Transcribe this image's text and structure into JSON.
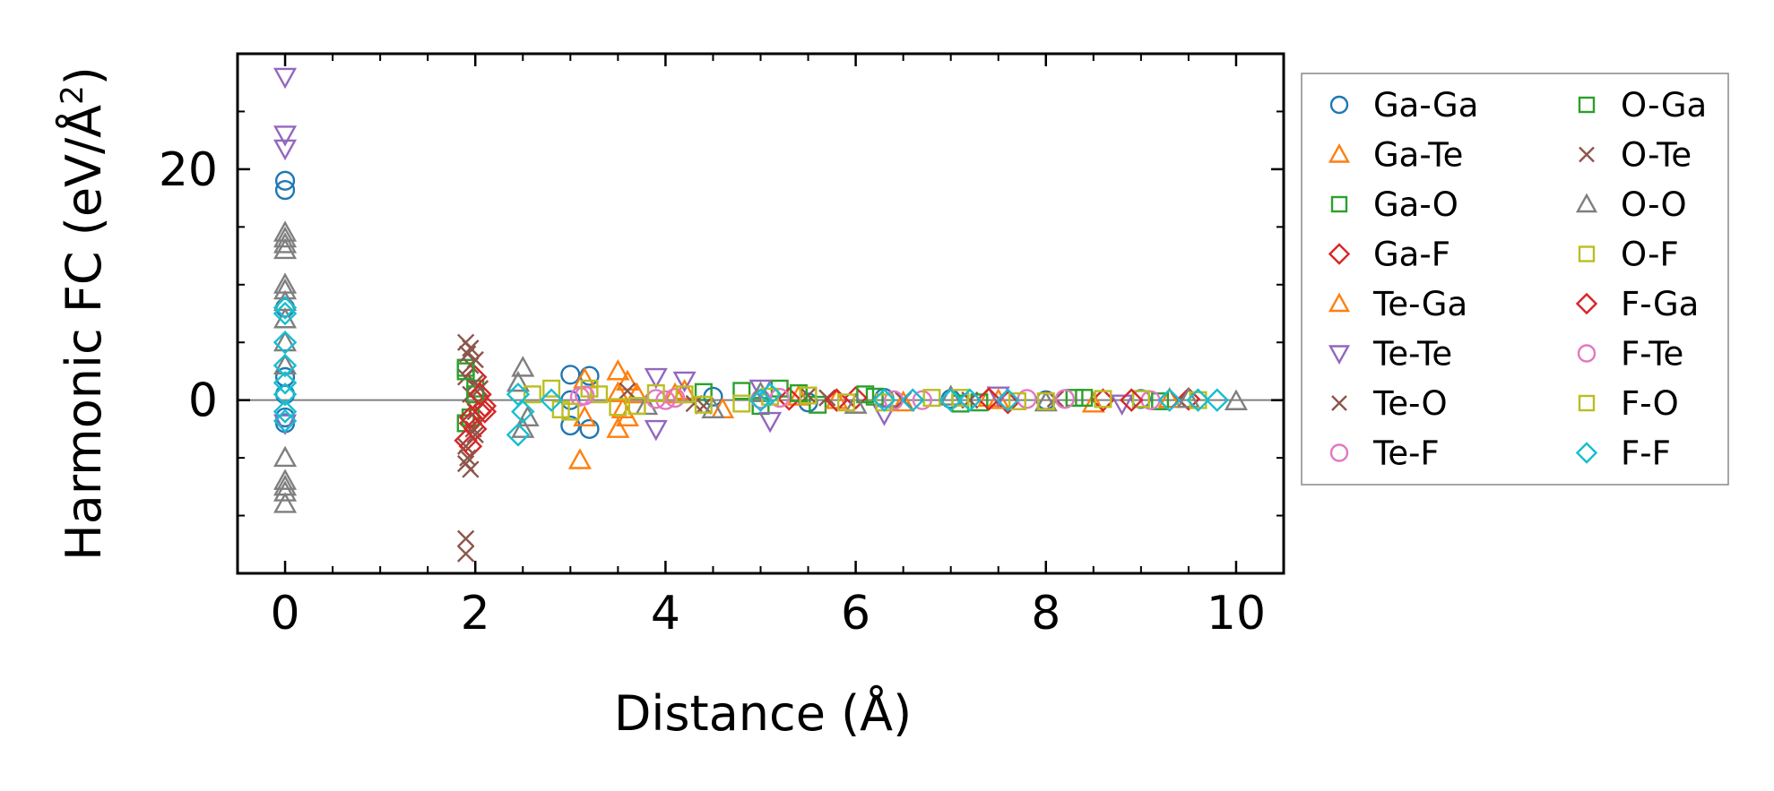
{
  "chart_data": {
    "type": "scatter",
    "title": "",
    "xlabel": "Distance (Å)",
    "ylabel_main": "Harmonic FC (eV/Å",
    "ylabel_sup": "2",
    "ylabel_close": ")",
    "xlim": [
      -0.5,
      10.5
    ],
    "ylim": [
      -15,
      30
    ],
    "x_ticks": [
      0,
      2,
      4,
      6,
      8,
      10
    ],
    "x_tick_labels": [
      "0",
      "2",
      "4",
      "6",
      "8",
      "10"
    ],
    "x_minor_ticks": [
      -0.5,
      0.5,
      1,
      1.5,
      2.5,
      3,
      3.5,
      4.5,
      5,
      5.5,
      6.5,
      7,
      7.5,
      8.5,
      9,
      9.5
    ],
    "y_ticks": [
      0,
      20
    ],
    "y_tick_labels": [
      "0",
      "20"
    ],
    "y_minor_ticks": [
      -10,
      -5,
      5,
      10,
      15,
      25
    ],
    "zero_line": 0,
    "legend_position": "outside-right",
    "series": [
      {
        "name": "Ga-Ga",
        "color": "#1f77b4",
        "marker": "circle",
        "points": [
          [
            0,
            19
          ],
          [
            0,
            18.2
          ],
          [
            0,
            8
          ],
          [
            0,
            2
          ],
          [
            0,
            0.5
          ],
          [
            0,
            -1.5
          ],
          [
            0,
            -2
          ],
          [
            3.0,
            2.2
          ],
          [
            3.0,
            -2.2
          ],
          [
            3.2,
            2.1
          ],
          [
            3.2,
            -2.5
          ],
          [
            3.0,
            0
          ],
          [
            4.5,
            0.3
          ],
          [
            5.5,
            -0.2
          ],
          [
            6.3,
            0.2
          ],
          [
            7,
            0.1
          ],
          [
            8,
            0
          ],
          [
            9,
            0.1
          ]
        ]
      },
      {
        "name": "Ga-Te",
        "color": "#ff7f0e",
        "marker": "triangle-up",
        "points": [
          [
            3.15,
            1.8
          ],
          [
            3.15,
            -1.5
          ],
          [
            3.1,
            -5.2
          ],
          [
            3.5,
            2.5
          ],
          [
            3.5,
            -2.5
          ],
          [
            3.6,
            -1.5
          ],
          [
            3.6,
            1.6
          ],
          [
            3.7,
            0.5
          ],
          [
            4.2,
            0.8
          ],
          [
            4.6,
            -0.8
          ],
          [
            5.4,
            0.3
          ],
          [
            6.5,
            -0.2
          ],
          [
            7.4,
            0.2
          ],
          [
            8.5,
            -0.3
          ],
          [
            9.3,
            0.1
          ]
        ]
      },
      {
        "name": "Ga-O",
        "color": "#2ca02c",
        "marker": "square",
        "points": [
          [
            1.9,
            2.8
          ],
          [
            1.9,
            -2
          ],
          [
            2.0,
            1
          ],
          [
            4.4,
            0.7
          ],
          [
            5.0,
            -0.5
          ],
          [
            5.2,
            1
          ],
          [
            5.6,
            -0.4
          ],
          [
            6.2,
            0.3
          ],
          [
            7.3,
            -0.2
          ],
          [
            8.3,
            0.2
          ],
          [
            9.2,
            -0.1
          ]
        ]
      },
      {
        "name": "Ga-F",
        "color": "#d62728",
        "marker": "diamond",
        "points": [
          [
            1.95,
            -2
          ],
          [
            1.95,
            -4
          ],
          [
            2.0,
            0
          ],
          [
            2.0,
            2
          ],
          [
            2.05,
            -1
          ],
          [
            2.1,
            -0.5
          ],
          [
            1.9,
            -3.5
          ],
          [
            5.3,
            0.1
          ],
          [
            6.0,
            0.2
          ],
          [
            7.6,
            -0.2
          ],
          [
            8.6,
            0
          ],
          [
            9.5,
            0.1
          ]
        ]
      },
      {
        "name": "Te-Ga",
        "color": "#ff7f0e",
        "marker": "triangle-up",
        "points": [
          [
            3.5,
            0.6
          ],
          [
            3.55,
            -0.8
          ],
          [
            4.1,
            0.5
          ],
          [
            5.8,
            0
          ],
          [
            7.5,
            0
          ]
        ]
      },
      {
        "name": "Te-Te",
        "color": "#9467bd",
        "marker": "triangle-down",
        "points": [
          [
            0,
            28
          ],
          [
            0,
            23
          ],
          [
            0,
            21.8
          ],
          [
            0,
            -2
          ],
          [
            3.9,
            2
          ],
          [
            3.9,
            -2.5
          ],
          [
            4.2,
            1.7
          ],
          [
            5.0,
            1
          ],
          [
            5.1,
            -1.8
          ],
          [
            6.3,
            -1.2
          ],
          [
            7.5,
            0.4
          ],
          [
            8.8,
            -0.3
          ]
        ]
      },
      {
        "name": "Te-O",
        "color": "#8c564b",
        "marker": "x",
        "points": [
          [
            1.9,
            -12
          ],
          [
            1.9,
            -13.3
          ],
          [
            1.9,
            5
          ],
          [
            1.92,
            4
          ],
          [
            1.95,
            3
          ],
          [
            1.9,
            2
          ],
          [
            1.92,
            -5
          ],
          [
            1.95,
            -6
          ],
          [
            1.9,
            -4
          ],
          [
            2.0,
            -3
          ],
          [
            2.0,
            1.5
          ],
          [
            2.0,
            -1
          ],
          [
            1.95,
            0.5
          ],
          [
            3.6,
            0.8
          ],
          [
            4.4,
            -0.5
          ],
          [
            5.5,
            0.4
          ],
          [
            6.5,
            0
          ],
          [
            8.1,
            0.1
          ],
          [
            9.4,
            0
          ]
        ]
      },
      {
        "name": "Te-F",
        "color": "#e377c2",
        "marker": "circle",
        "points": [
          [
            3.1,
            0.3
          ],
          [
            4.0,
            0
          ],
          [
            4.1,
            0.2
          ],
          [
            5.0,
            0.1
          ],
          [
            6.4,
            0
          ],
          [
            7.8,
            0.1
          ],
          [
            9.1,
            0
          ]
        ]
      },
      {
        "name": "O-Ga",
        "color": "#2ca02c",
        "marker": "square",
        "points": [
          [
            1.9,
            2.5
          ],
          [
            1.95,
            -1.5
          ],
          [
            2.0,
            0.5
          ],
          [
            4.8,
            0.8
          ],
          [
            5.4,
            0.6
          ],
          [
            6.1,
            0.5
          ],
          [
            7.1,
            -0.3
          ],
          [
            8.4,
            0.2
          ]
        ]
      },
      {
        "name": "O-Te",
        "color": "#8c564b",
        "marker": "x",
        "points": [
          [
            1.95,
            4.5
          ],
          [
            1.98,
            -2.5
          ],
          [
            2.0,
            3.5
          ],
          [
            1.9,
            -5.5
          ],
          [
            2.05,
            1
          ],
          [
            4.3,
            -0.3
          ],
          [
            5.7,
            0.2
          ],
          [
            7.2,
            0
          ]
        ]
      },
      {
        "name": "O-O",
        "color": "#7f7f7f",
        "marker": "triangle-up",
        "points": [
          [
            0,
            14.5
          ],
          [
            0,
            14
          ],
          [
            0,
            13.5
          ],
          [
            0,
            13
          ],
          [
            0,
            10
          ],
          [
            0,
            9.5
          ],
          [
            0,
            8.5
          ],
          [
            0,
            7
          ],
          [
            0,
            5
          ],
          [
            0,
            3
          ],
          [
            0,
            -5
          ],
          [
            0,
            -7
          ],
          [
            0,
            -8
          ],
          [
            0,
            -9
          ],
          [
            0,
            -7.5
          ],
          [
            2.5,
            2.8
          ],
          [
            2.5,
            -2.5
          ],
          [
            2.45,
            1.5
          ],
          [
            2.55,
            -1.5
          ],
          [
            3.8,
            -0.5
          ],
          [
            4.5,
            -0.8
          ],
          [
            5.0,
            0.6
          ],
          [
            6.0,
            -0.4
          ],
          [
            7.0,
            0.3
          ],
          [
            8.0,
            -0.2
          ],
          [
            9.5,
            0.1
          ],
          [
            10.0,
            -0.1
          ]
        ]
      },
      {
        "name": "O-F",
        "color": "#bcbd22",
        "marker": "square",
        "points": [
          [
            2.8,
            1
          ],
          [
            3.0,
            -1
          ],
          [
            3.3,
            0.5
          ],
          [
            3.7,
            -0.5
          ],
          [
            4.2,
            0.5
          ],
          [
            4.8,
            -0.3
          ],
          [
            5.5,
            0.4
          ],
          [
            6.3,
            -0.2
          ],
          [
            7.1,
            0.2
          ],
          [
            8.0,
            -0.1
          ],
          [
            9.0,
            0.1
          ]
        ]
      },
      {
        "name": "F-Ga",
        "color": "#d62728",
        "marker": "diamond",
        "points": [
          [
            1.95,
            -1.5
          ],
          [
            2.0,
            -2.5
          ],
          [
            2.05,
            0.5
          ],
          [
            2.1,
            -1
          ],
          [
            5.8,
            0
          ],
          [
            7.4,
            0.1
          ],
          [
            8.9,
            0
          ]
        ]
      },
      {
        "name": "F-Te",
        "color": "#e377c2",
        "marker": "circle",
        "points": [
          [
            3.15,
            0.4
          ],
          [
            3.9,
            0.1
          ],
          [
            5.2,
            0.2
          ],
          [
            6.7,
            0
          ],
          [
            8.2,
            0.1
          ]
        ]
      },
      {
        "name": "F-O",
        "color": "#bcbd22",
        "marker": "square",
        "points": [
          [
            2.6,
            0.5
          ],
          [
            2.9,
            -0.8
          ],
          [
            3.2,
            1
          ],
          [
            3.5,
            -0.6
          ],
          [
            3.9,
            0.6
          ],
          [
            4.4,
            -0.4
          ],
          [
            5.1,
            0.3
          ],
          [
            5.9,
            -0.2
          ],
          [
            6.8,
            0.2
          ],
          [
            7.7,
            -0.1
          ],
          [
            8.6,
            0.1
          ],
          [
            9.6,
            0
          ]
        ]
      },
      {
        "name": "F-F",
        "color": "#17becf",
        "marker": "diamond",
        "points": [
          [
            0,
            8
          ],
          [
            0,
            7.5
          ],
          [
            0,
            5
          ],
          [
            0,
            3
          ],
          [
            0,
            1.5
          ],
          [
            0,
            0.5
          ],
          [
            0,
            -1
          ],
          [
            0,
            -1.8
          ],
          [
            2.45,
            0.5
          ],
          [
            2.5,
            -1
          ],
          [
            2.45,
            -3
          ],
          [
            2.8,
            0
          ],
          [
            5.0,
            0
          ],
          [
            5.1,
            0.5
          ],
          [
            6.3,
            0
          ],
          [
            6.6,
            0
          ],
          [
            7.0,
            0
          ],
          [
            7.2,
            0
          ],
          [
            7.6,
            0
          ],
          [
            9.3,
            0
          ],
          [
            9.6,
            0
          ],
          [
            9.8,
            0
          ]
        ]
      }
    ]
  }
}
